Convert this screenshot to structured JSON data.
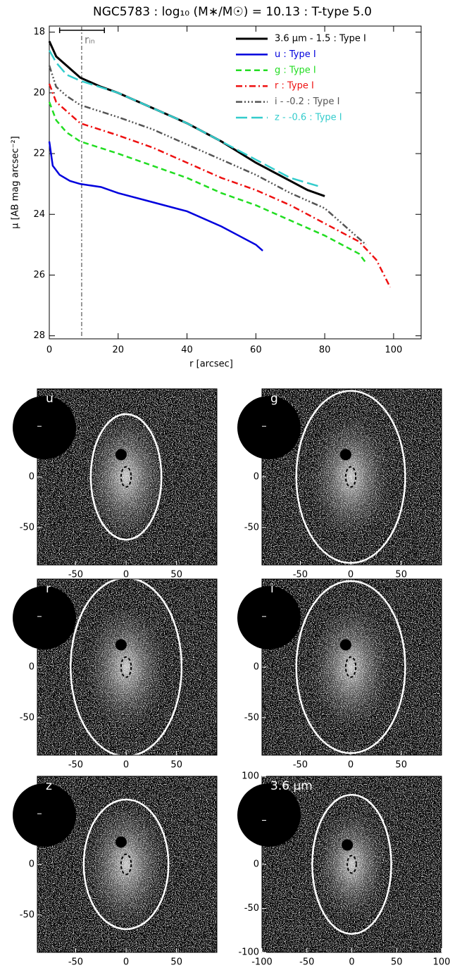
{
  "chart_data": {
    "type": "line",
    "title": "NGC5783 : log₁₀ (M∗/M☉) = 10.13 : T-type 5.0",
    "x_label": "r [arcsec]",
    "y_label": "μ [AB mag arcsec⁻²]",
    "xlim": [
      0,
      108
    ],
    "ylim": [
      17.8,
      28.1
    ],
    "y_inverted": true,
    "xticks": [
      0,
      20,
      40,
      60,
      80,
      100
    ],
    "yticks": [
      18,
      20,
      22,
      24,
      26,
      28
    ],
    "r_in": {
      "x": 9.4,
      "label": "rᵢₙ",
      "bar": [
        3,
        16
      ]
    },
    "series": [
      {
        "name": "3.6 μm - 1.5 : Type I",
        "color": "#000000",
        "dash": "",
        "width": 3,
        "x": [
          0,
          2,
          5,
          9,
          15,
          20,
          30,
          40,
          50,
          60,
          70,
          75,
          80
        ],
        "values": [
          18.3,
          18.8,
          19.1,
          19.5,
          19.8,
          20.0,
          20.5,
          21.0,
          21.6,
          22.3,
          22.9,
          23.2,
          23.4
        ]
      },
      {
        "name": "u : Type I",
        "color": "#0000dd",
        "dash": "",
        "width": 2.5,
        "x": [
          0,
          1,
          3,
          6,
          9,
          15,
          20,
          30,
          40,
          50,
          55,
          60,
          62
        ],
        "values": [
          21.6,
          22.4,
          22.7,
          22.9,
          23.0,
          23.1,
          23.3,
          23.6,
          23.9,
          24.4,
          24.7,
          25.0,
          25.2
        ]
      },
      {
        "name": "g : Type I",
        "color": "#22dd22",
        "dash": "8 5",
        "width": 2.5,
        "x": [
          0,
          2,
          5,
          9,
          20,
          30,
          40,
          50,
          60,
          70,
          80,
          90,
          92
        ],
        "values": [
          20.3,
          20.9,
          21.3,
          21.6,
          22.0,
          22.4,
          22.8,
          23.3,
          23.7,
          24.2,
          24.7,
          25.3,
          25.6
        ]
      },
      {
        "name": "r : Type I",
        "color": "#ee1111",
        "dash": "9 4 2 4",
        "width": 2.5,
        "x": [
          0,
          2,
          5,
          9,
          20,
          30,
          40,
          50,
          60,
          70,
          80,
          90,
          95,
          99
        ],
        "values": [
          19.7,
          20.3,
          20.6,
          21.0,
          21.4,
          21.8,
          22.3,
          22.8,
          23.2,
          23.7,
          24.3,
          24.9,
          25.5,
          26.4
        ]
      },
      {
        "name": "i - -0.2 : Type I",
        "color": "#555555",
        "dash": "9 3 2 3 2 3 2 3",
        "width": 2.5,
        "x": [
          0,
          2,
          5,
          9,
          20,
          30,
          40,
          50,
          60,
          70,
          80,
          90,
          92
        ],
        "values": [
          19.1,
          19.8,
          20.1,
          20.4,
          20.8,
          21.2,
          21.7,
          22.2,
          22.7,
          23.3,
          23.8,
          24.8,
          25.0
        ]
      },
      {
        "name": "z - -0.6 : Type I",
        "color": "#33cccc",
        "dash": "16 6",
        "width": 2.5,
        "x": [
          0,
          2,
          5,
          9,
          20,
          30,
          40,
          50,
          60,
          70,
          79
        ],
        "values": [
          18.6,
          19.0,
          19.4,
          19.6,
          20.0,
          20.5,
          21.0,
          21.6,
          22.2,
          22.8,
          23.1
        ]
      }
    ],
    "panels": [
      {
        "label": "u",
        "xlim": [
          -88,
          90
        ],
        "ylim": [
          -87,
          87
        ],
        "xticks": [
          -50,
          0,
          50
        ],
        "yticks": [
          -50,
          0,
          50
        ],
        "ellipse": [
          35,
          62
        ],
        "inner_ellipse": [
          5,
          10
        ]
      },
      {
        "label": "g",
        "xlim": [
          -88,
          90
        ],
        "ylim": [
          -87,
          87
        ],
        "xticks": [
          -50,
          0,
          50
        ],
        "yticks": [
          -50,
          0,
          50
        ],
        "ellipse": [
          54,
          85
        ],
        "inner_ellipse": [
          5,
          10
        ]
      },
      {
        "label": "r",
        "xlim": [
          -88,
          90
        ],
        "ylim": [
          -87,
          87
        ],
        "xticks": [
          -50,
          0,
          50
        ],
        "yticks": [
          -50,
          0,
          50
        ],
        "ellipse": [
          55,
          88
        ],
        "inner_ellipse": [
          5,
          10
        ]
      },
      {
        "label": "i",
        "xlim": [
          -88,
          90
        ],
        "ylim": [
          -87,
          87
        ],
        "xticks": [
          -50,
          0,
          50
        ],
        "yticks": [
          -50,
          0,
          50
        ],
        "ellipse": [
          54,
          85
        ],
        "inner_ellipse": [
          5,
          10
        ]
      },
      {
        "label": "z",
        "xlim": [
          -88,
          90
        ],
        "ylim": [
          -87,
          87
        ],
        "xticks": [
          -50,
          0,
          50
        ],
        "yticks": [
          -50,
          0,
          50
        ],
        "ellipse": [
          42,
          64
        ],
        "inner_ellipse": [
          5,
          10
        ]
      },
      {
        "label": "3.6 μm",
        "xlim": [
          -100,
          100
        ],
        "ylim": [
          -100,
          100
        ],
        "xticks": [
          -100,
          -50,
          0,
          50,
          100
        ],
        "yticks": [
          -100,
          -50,
          0,
          50,
          100
        ],
        "ellipse": [
          44,
          79
        ],
        "inner_ellipse": [
          5,
          10
        ]
      }
    ]
  }
}
